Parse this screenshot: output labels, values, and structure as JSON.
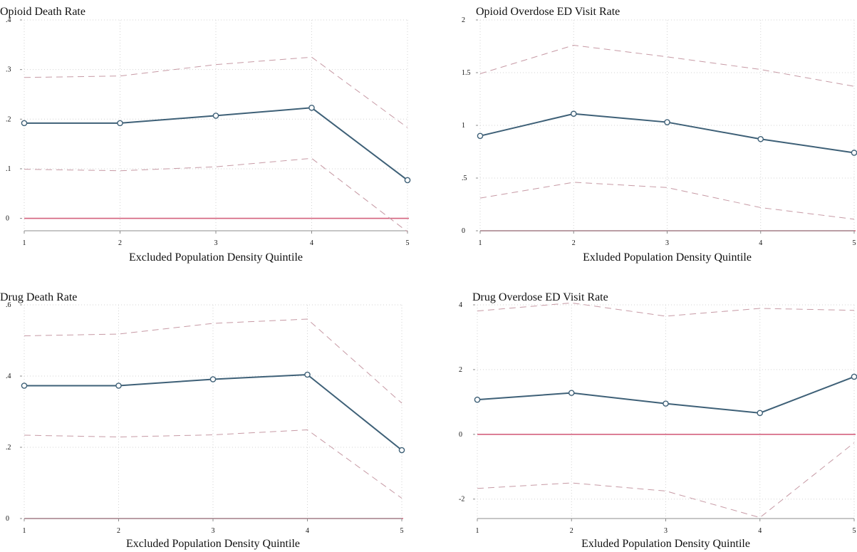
{
  "chart_data": [
    {
      "type": "line",
      "title": "Opioid Death Rate",
      "xlabel": "Excluded Population Density Quintile",
      "ylabel": "",
      "x": [
        1,
        2,
        3,
        4,
        5
      ],
      "xticks": [
        "1",
        "2",
        "3",
        "4",
        "5"
      ],
      "yticks": [
        0,
        0.1,
        0.2,
        0.3,
        0.4
      ],
      "ytick_labels": [
        "0",
        ".1",
        ".2",
        ".3",
        ".4"
      ],
      "ylim": [
        -0.025,
        0.4
      ],
      "series": [
        {
          "role": "estimate",
          "values": [
            0.192,
            0.192,
            0.207,
            0.223,
            0.077
          ]
        },
        {
          "role": "ci-upper",
          "values": [
            0.284,
            0.287,
            0.31,
            0.325,
            0.183
          ]
        },
        {
          "role": "ci-lower",
          "values": [
            0.099,
            0.096,
            0.104,
            0.121,
            -0.027
          ]
        }
      ],
      "reference_line": 0,
      "grid": true
    },
    {
      "type": "line",
      "title": "Opioid Overdose ED Visit Rate",
      "xlabel": "Exluded Population Density Quintile",
      "ylabel": "",
      "x": [
        1,
        2,
        3,
        4,
        5
      ],
      "xticks": [
        "1",
        "2",
        "3",
        "4",
        "5"
      ],
      "yticks": [
        0,
        0.5,
        1,
        1.5,
        2
      ],
      "ytick_labels": [
        "0",
        ".5",
        "1",
        "1.5",
        "2"
      ],
      "ylim": [
        0,
        2
      ],
      "series": [
        {
          "role": "estimate",
          "values": [
            0.9,
            1.11,
            1.03,
            0.87,
            0.74
          ]
        },
        {
          "role": "ci-upper",
          "values": [
            1.49,
            1.76,
            1.65,
            1.53,
            1.37
          ]
        },
        {
          "role": "ci-lower",
          "values": [
            0.31,
            0.46,
            0.41,
            0.22,
            0.11
          ]
        }
      ],
      "reference_line": 0,
      "grid": true
    },
    {
      "type": "line",
      "title": "Drug Death Rate",
      "xlabel": "Excluded Population Density Quintile",
      "ylabel": "",
      "x": [
        1,
        2,
        3,
        4,
        5
      ],
      "xticks": [
        "1",
        "2",
        "3",
        "4",
        "5"
      ],
      "yticks": [
        0,
        0.2,
        0.4,
        0.6
      ],
      "ytick_labels": [
        "0",
        ".2",
        ".4",
        ".6"
      ],
      "ylim": [
        0,
        0.6
      ],
      "series": [
        {
          "role": "estimate",
          "values": [
            0.373,
            0.373,
            0.391,
            0.404,
            0.192
          ]
        },
        {
          "role": "ci-upper",
          "values": [
            0.513,
            0.518,
            0.548,
            0.56,
            0.324
          ]
        },
        {
          "role": "ci-lower",
          "values": [
            0.234,
            0.229,
            0.235,
            0.249,
            0.057
          ]
        }
      ],
      "reference_line": 0,
      "grid": true
    },
    {
      "type": "line",
      "title": "Drug Overdose ED Visit Rate",
      "xlabel": "Exluded Population Density Quintile",
      "ylabel": "",
      "x": [
        1,
        2,
        3,
        4,
        5
      ],
      "xticks": [
        "1",
        "2",
        "3",
        "4",
        "5"
      ],
      "yticks": [
        -2,
        0,
        2,
        4
      ],
      "ytick_labels": [
        "-2",
        "0",
        "2",
        "4"
      ],
      "ylim": [
        -2.6,
        4
      ],
      "series": [
        {
          "role": "estimate",
          "values": [
            1.07,
            1.28,
            0.95,
            0.66,
            1.78
          ]
        },
        {
          "role": "ci-upper",
          "values": [
            3.81,
            4.06,
            3.65,
            3.89,
            3.83
          ]
        },
        {
          "role": "ci-lower",
          "values": [
            -1.67,
            -1.5,
            -1.75,
            -2.57,
            -0.26
          ]
        }
      ],
      "reference_line": 0,
      "grid": true
    }
  ],
  "colors": {
    "estimate": "#3e6077",
    "ci": "#c79aa5",
    "reference": "#d4627e",
    "grid": "#d3d3d3",
    "axis": "#8c8c8c"
  }
}
